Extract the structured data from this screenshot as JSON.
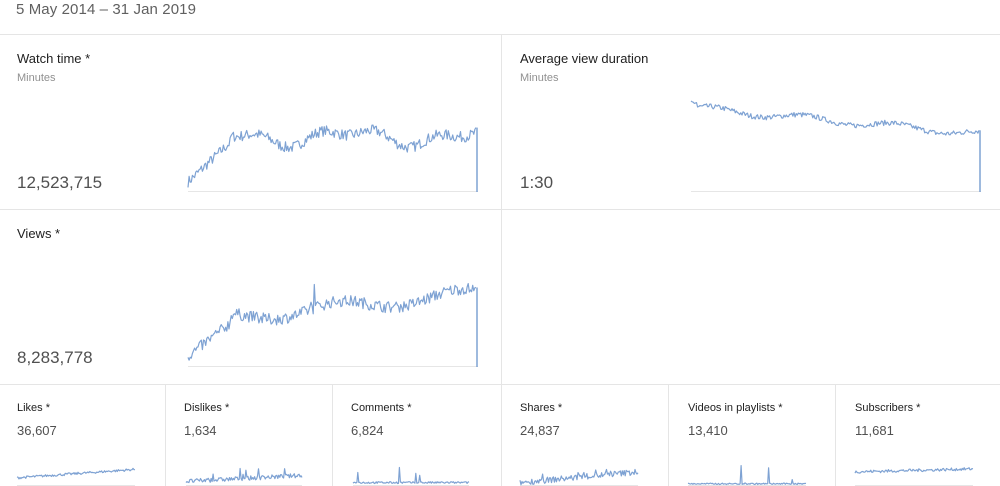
{
  "date_range": "5 May 2014 – 31 Jan 2019",
  "colors": {
    "series": "#7ea2d3",
    "divider": "#e5e5e5",
    "muted": "#909090"
  },
  "cards": {
    "watch_time": {
      "title": "Watch time *",
      "unit": "Minutes",
      "value": "12,523,715"
    },
    "avg_view_duration": {
      "title": "Average view duration",
      "unit": "Minutes",
      "value": "1:30"
    },
    "views": {
      "title": "Views *",
      "value": "8,283,778"
    }
  },
  "small_cards": [
    {
      "title": "Likes *",
      "value": "36,607"
    },
    {
      "title": "Dislikes *",
      "value": "1,634"
    },
    {
      "title": "Comments *",
      "value": "6,824"
    },
    {
      "title": "Shares *",
      "value": "24,837"
    },
    {
      "title": "Videos in playlists *",
      "value": "13,410"
    },
    {
      "title": "Subscribers *",
      "value": "11,681"
    }
  ]
}
